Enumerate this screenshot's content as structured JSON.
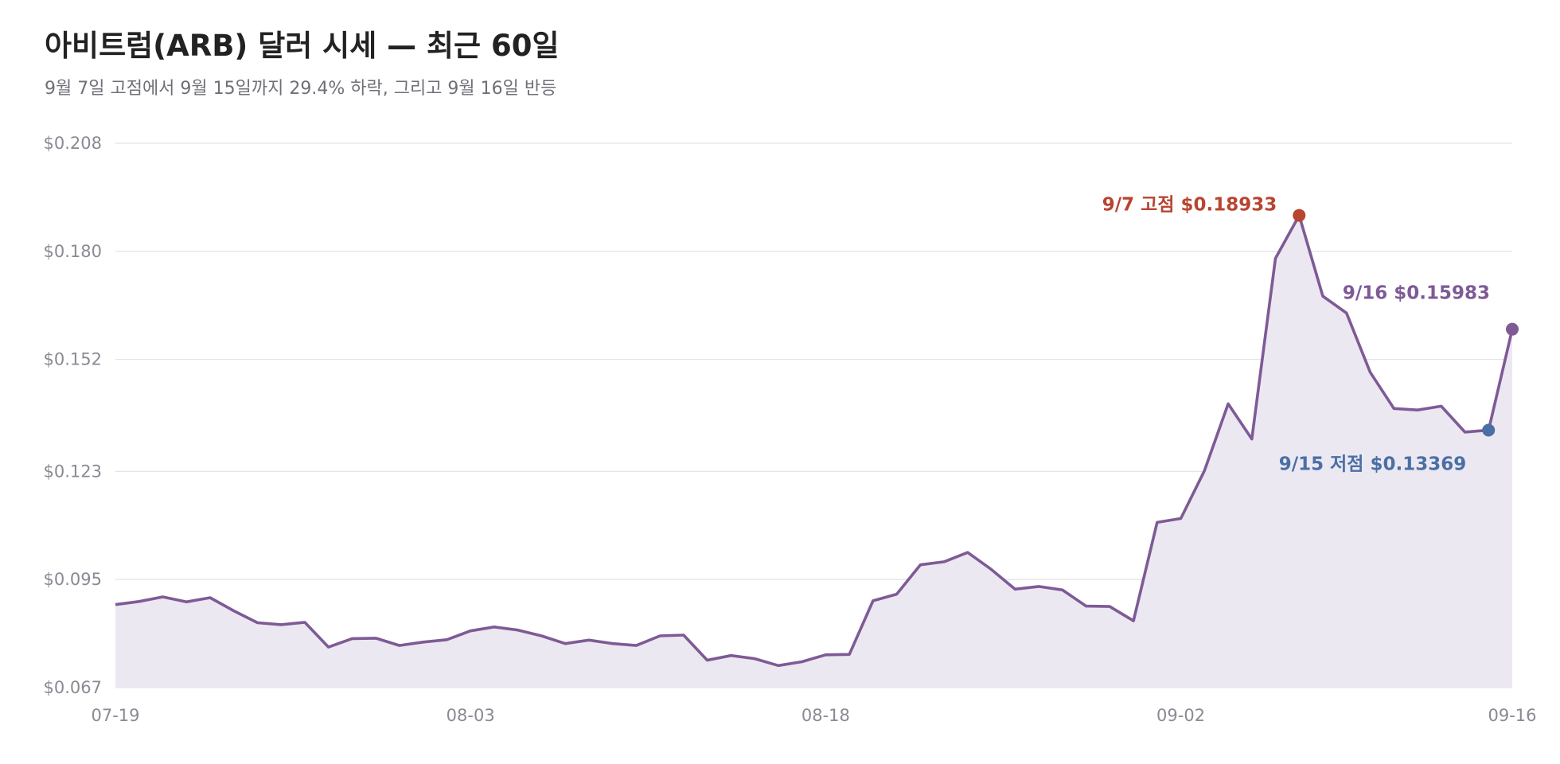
{
  "chart_data": {
    "type": "line",
    "title": "아비트럼(ARB) 달러 시세 — 최근 60일",
    "subtitle": "9월 7일 고점에서 9월 15일까지 29.4% 하락, 그리고 9월 16일 반등",
    "xlabel": "",
    "ylabel": "",
    "ylim": [
      0.067,
      0.208
    ],
    "yticks": [
      "$0.067",
      "$0.095",
      "$0.123",
      "$0.152",
      "$0.180",
      "$0.208"
    ],
    "ytick_values": [
      0.067,
      0.095,
      0.123,
      0.152,
      0.18,
      0.208
    ],
    "xticks": [
      "07-19",
      "08-03",
      "08-18",
      "09-02",
      "09-16"
    ],
    "xtick_days": [
      0,
      15,
      30,
      45,
      59
    ],
    "grid": true,
    "line_color": "#7e5a96",
    "fill_color": "#ece8f1",
    "series": [
      {
        "values": [
          0.0885,
          0.0893,
          0.0905,
          0.0892,
          0.0903,
          0.0869,
          0.0838,
          0.0833,
          0.0839,
          0.0775,
          0.0797,
          0.0798,
          0.0779,
          0.0788,
          0.0794,
          0.0817,
          0.0827,
          0.0819,
          0.0804,
          0.0784,
          0.0793,
          0.0784,
          0.0779,
          0.0804,
          0.0806,
          0.0741,
          0.0753,
          0.0745,
          0.0727,
          0.0737,
          0.0755,
          0.0756,
          0.0895,
          0.0912,
          0.0988,
          0.0996,
          0.102,
          0.0976,
          0.0925,
          0.0932,
          0.0923,
          0.0881,
          0.088,
          0.0843,
          0.1098,
          0.1108,
          0.1232,
          0.1405,
          0.1314,
          0.1782,
          0.1893,
          0.1684,
          0.164,
          0.1487,
          0.1393,
          0.1389,
          0.1399,
          0.1332,
          0.1337,
          0.1598
        ]
      }
    ],
    "annotations": [
      {
        "label": "9/7 고점 $0.18933",
        "day": 50,
        "value": 0.18933,
        "color": "#b84530"
      },
      {
        "label": "9/15 저점 $0.13369",
        "day": 58,
        "value": 0.13369,
        "color": "#4a6fa5"
      },
      {
        "label": "9/16 $0.15983",
        "day": 59,
        "value": 0.15983,
        "color": "#7e5a96"
      }
    ]
  }
}
